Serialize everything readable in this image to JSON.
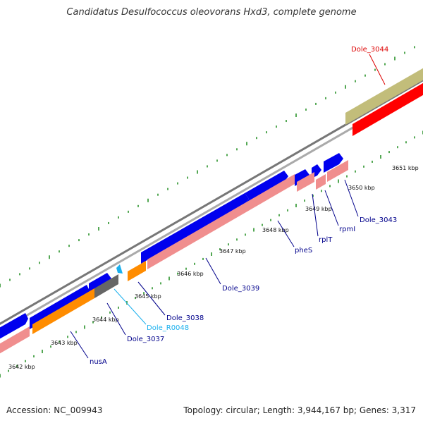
{
  "header": {
    "title": "Candidatus Desulfococcus oleovorans Hxd3, complete genome"
  },
  "footer": {
    "accession": "Accession: NC_009943",
    "stats": "Topology: circular; Length: 3,944,167 bp; Genes: 3,317"
  },
  "colors": {
    "forward_cds": "#0000ee",
    "reverse_cds": "#f08e8e",
    "orange_gene": "#ff8c00",
    "gray_gene": "#666666",
    "rna": "#1ab0ee",
    "olive_track": "#c2bd7a",
    "red_track": "#ff0000",
    "backbone": "#888888",
    "tick": "#1a8a1a",
    "label_default": "#00008b",
    "label_rna": "#1ab0ee",
    "label_highlight": "#dd0000"
  },
  "ticks": [
    {
      "label": "3642 kbp"
    },
    {
      "label": "3643 kbp"
    },
    {
      "label": "3644 kbp"
    },
    {
      "label": "3645 kbp"
    },
    {
      "label": "3646 kbp"
    },
    {
      "label": "3647 kbp"
    },
    {
      "label": "3648 kbp"
    },
    {
      "label": "3649 kbp"
    },
    {
      "label": "3650 kbp"
    },
    {
      "label": "3651 kbp"
    }
  ],
  "genes": [
    {
      "label": "nusA"
    },
    {
      "label": "Dole_3037"
    },
    {
      "label": "Dole_R0048"
    },
    {
      "label": "Dole_3038"
    },
    {
      "label": "Dole_3039"
    },
    {
      "label": "pheS"
    },
    {
      "label": "rplT"
    },
    {
      "label": "rpmI"
    },
    {
      "label": "Dole_3043"
    },
    {
      "label": "Dole_3044"
    }
  ]
}
